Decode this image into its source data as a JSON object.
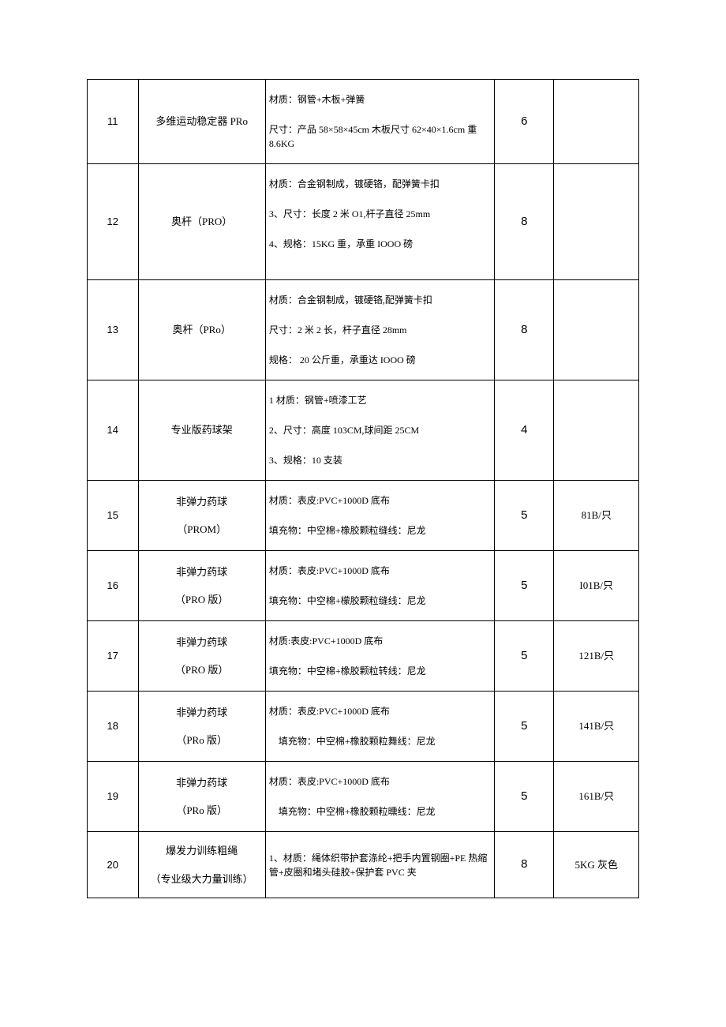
{
  "rows": [
    {
      "num": "11",
      "name": "多维运动稳定器 PRo",
      "desc_lines": [
        "材质：钢管+木板+弹簧",
        "尺寸：产品 58×58×45cm 木板尺寸 62×40×1.6cm 重 8.6KG"
      ],
      "qty": "6",
      "note": ""
    },
    {
      "num": "12",
      "name": "奥杆（PRO）",
      "desc_lines": [
        "材质：合金钢制成，镀硬铬，配弹簧卡扣",
        "3、尺寸：长度 2 米 O1,杆子直径 25mm",
        "4、规格：15KG 重，承重 IOOO 磅",
        " "
      ],
      "qty": "8",
      "note": ""
    },
    {
      "num": "13",
      "name": "奥杆（PRo）",
      "desc_lines": [
        "材质：合金钢制成，镀硬铬,配弹簧卡扣",
        "尺寸：2 米 2 长，杆子直径 28mm",
        "规格： 20 公斤重，承重达 IOOO 磅"
      ],
      "qty": "8",
      "note": ""
    },
    {
      "num": "14",
      "name": "专业版药球架",
      "desc_lines": [
        "1 材质：钢管+喷漆工艺",
        "2、尺寸：高度 103CM,球间距 25CM",
        "3、规格：10 支装"
      ],
      "qty": "4",
      "note": ""
    },
    {
      "num": "15",
      "name_lines": [
        "非弹力药球",
        "（PROM）"
      ],
      "desc_lines": [
        "材质：表皮:PVC+1000D 底布",
        "填充物：中空棉+橡胶颗粒缝线：尼龙"
      ],
      "qty": "5",
      "note": "81B/只"
    },
    {
      "num": "16",
      "name_lines": [
        "非弹力药球",
        "（PRO 版）"
      ],
      "desc_lines": [
        "材质：表皮:PVC+1000D 底布",
        "填充物：中空棉+檬胶颗粒缝线：尼龙"
      ],
      "qty": "5",
      "note": "I01B/只"
    },
    {
      "num": "17",
      "name_lines": [
        "非弹力药球",
        "（PRO 版）"
      ],
      "desc_lines": [
        "材质:表皮:PVC+1000D 底布",
        "填充物：中空棉+橡胶颗粒转线：尼龙"
      ],
      "qty": "5",
      "note": "121B/只"
    },
    {
      "num": "18",
      "name_lines": [
        "非弹力药球",
        "（PRo 版）"
      ],
      "desc_lines": [
        "材质：表皮:PVC+1000D 底布",
        "　填充物：中空棉+橡胶颗粒舞线：尼龙"
      ],
      "qty": "5",
      "note": "141B/只"
    },
    {
      "num": "19",
      "name_lines": [
        "非弹力药球",
        "（PRo 版）"
      ],
      "desc_lines": [
        "材质：表皮:PVC+1000D 底布",
        "　填充物：中空棉+橡胶颗粒曛线：尼龙"
      ],
      "qty": "5",
      "note": "161B/只"
    },
    {
      "num": "20",
      "name_lines": [
        "爆发力训练粗绳",
        "（专业级大力量训练）"
      ],
      "desc_single": "1、材质：绳体织带护套涤纶+把手内置钢圈+PE 热缩管+皮圈和堵头硅胶+保护套 PVC 夹",
      "qty": "8",
      "note": "5KG 灰色"
    }
  ]
}
